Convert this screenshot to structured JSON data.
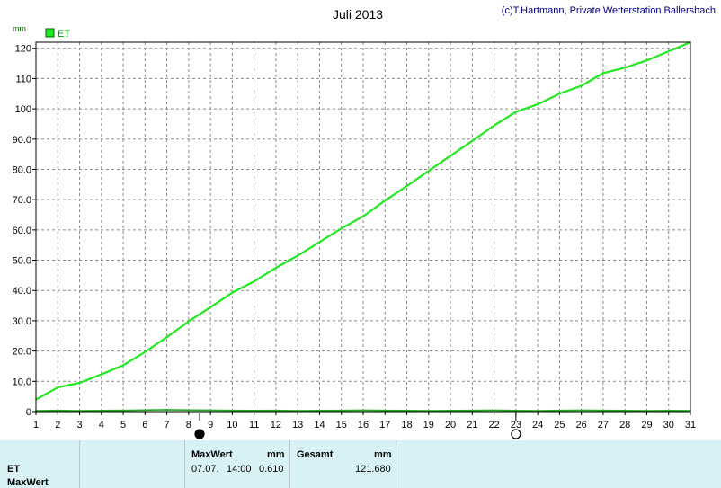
{
  "chart_data": {
    "type": "line",
    "title": "Juli 2013",
    "copyright": "(c)T.Hartmann, Private Wetterstation Ballersbach",
    "ylabel": "mm",
    "ylim": [
      0,
      122
    ],
    "yticks": [
      0,
      10.0,
      20.0,
      30.0,
      40.0,
      50.0,
      60.0,
      70.0,
      80.0,
      90.0,
      100,
      110,
      120
    ],
    "ytick_labels": [
      "0",
      "10.0",
      "20.0",
      "30.0",
      "40.0",
      "50.0",
      "60.0",
      "70.0",
      "80.0",
      "90.0",
      "100",
      "110",
      "120"
    ],
    "xlim": [
      1,
      31
    ],
    "x": [
      1,
      2,
      3,
      4,
      5,
      6,
      7,
      8,
      9,
      10,
      11,
      12,
      13,
      14,
      15,
      16,
      17,
      18,
      19,
      20,
      21,
      22,
      23,
      24,
      25,
      26,
      27,
      28,
      29,
      30,
      31
    ],
    "grid": true,
    "legend": "top-left",
    "moon_marks": [
      {
        "day": 8.5,
        "phase": "full"
      },
      {
        "day": 23,
        "phase": "new"
      }
    ],
    "series": [
      {
        "name": "ET",
        "color": "#22e822",
        "values": [
          4,
          8,
          9.5,
          12.3,
          15.3,
          19.7,
          24.6,
          29.8,
          34.5,
          39.3,
          43.0,
          47.5,
          51.5,
          56.0,
          60.5,
          64.5,
          69.7,
          74.5,
          79.5,
          84.5,
          89.4,
          94.5,
          99.0,
          101.5,
          105.0,
          107.6,
          111.8,
          113.6,
          116.0,
          119.0,
          122
        ]
      },
      {
        "name": "MaxWert",
        "color": "#22aa22",
        "values": [
          0.3,
          0.4,
          0.3,
          0.35,
          0.4,
          0.5,
          0.61,
          0.5,
          0.45,
          0.4,
          0.35,
          0.4,
          0.3,
          0.35,
          0.4,
          0.45,
          0.4,
          0.35,
          0.3,
          0.35,
          0.4,
          0.45,
          0.35,
          0.3,
          0.4,
          0.45,
          0.4,
          0.35,
          0.3,
          0.35,
          0.3
        ]
      }
    ]
  },
  "panel": {
    "row1": "ET",
    "row2": "MaxWert",
    "max_label": "MaxWert",
    "max_unit": "mm",
    "max_date": "07.07.",
    "max_time": "14:00",
    "max_value": "0.610",
    "total_label": "Gesamt",
    "total_unit": "mm",
    "total_value": "121.680"
  }
}
